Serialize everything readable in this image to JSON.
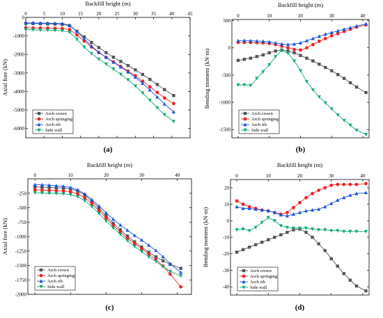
{
  "figure": {
    "panel_labels": [
      "(a)",
      "(b)",
      "(c)",
      "(d)"
    ]
  },
  "chart_data": [
    {
      "type": "line",
      "panel": "(a)",
      "xlabel": "Backfill height (m)",
      "ylabel": "Axial fore (kN)",
      "xlim": [
        0,
        45
      ],
      "ylim": [
        -6500,
        0
      ],
      "x_ticks": [
        0,
        5,
        10,
        15,
        20,
        25,
        30,
        35,
        40,
        45
      ],
      "y_ticks": [
        0,
        -1000,
        -2000,
        -3000,
        -4000,
        -5000,
        -6000
      ],
      "x_axis_position": "top",
      "legend_position": "bottom-left",
      "x": [
        0,
        2,
        4,
        6,
        8,
        10,
        12,
        14,
        16,
        18,
        20,
        22,
        24,
        26,
        28,
        30,
        32,
        34,
        36,
        38,
        40.5
      ],
      "series": [
        {
          "name": "Arch crown",
          "color": "#555555",
          "marker": "square",
          "values": [
            -320,
            -330,
            -340,
            -350,
            -360,
            -380,
            -450,
            -750,
            -1050,
            -1350,
            -1630,
            -1900,
            -2150,
            -2380,
            -2600,
            -2830,
            -3080,
            -3350,
            -3620,
            -3900,
            -4220
          ]
        },
        {
          "name": "Arch springing",
          "color": "#ee2222",
          "marker": "circle",
          "values": [
            -560,
            -570,
            -570,
            -580,
            -590,
            -600,
            -660,
            -950,
            -1280,
            -1600,
            -1900,
            -2150,
            -2400,
            -2650,
            -2900,
            -3150,
            -3450,
            -3750,
            -4050,
            -4350,
            -4650
          ]
        },
        {
          "name": "Arch rib",
          "color": "#1a55dd",
          "marker": "triangle-up",
          "values": [
            -300,
            -300,
            -310,
            -310,
            -320,
            -330,
            -420,
            -760,
            -1160,
            -1540,
            -1880,
            -2160,
            -2420,
            -2680,
            -2950,
            -3230,
            -3560,
            -3920,
            -4300,
            -4680,
            -5100
          ]
        },
        {
          "name": "Side wall",
          "color": "#11aa77",
          "marker": "triangle-down",
          "values": [
            -660,
            -670,
            -680,
            -690,
            -700,
            -720,
            -800,
            -1180,
            -1600,
            -1950,
            -2250,
            -2520,
            -2790,
            -3070,
            -3370,
            -3700,
            -4080,
            -4480,
            -4880,
            -5250,
            -5620
          ]
        }
      ]
    },
    {
      "type": "line",
      "panel": "(b)",
      "title": "Backfill height (m)",
      "ylabel": "Bending moment (kN·m)",
      "xlim": [
        -2,
        42
      ],
      "ylim": [
        -1650,
        520
      ],
      "x_ticks": [
        0,
        10,
        20,
        30,
        40
      ],
      "y_ticks": [
        500,
        0,
        -500,
        -1000,
        -1500
      ],
      "x_axis_position": "top",
      "legend_position": "bottom-left",
      "x": [
        0,
        2,
        4,
        6,
        8,
        10,
        12,
        14,
        16,
        18,
        20,
        22,
        24,
        26,
        28,
        30,
        32,
        34,
        36,
        38,
        41
      ],
      "series": [
        {
          "name": "Arch crown",
          "color": "#555555",
          "marker": "square",
          "values": [
            -230,
            -210,
            -190,
            -160,
            -130,
            -90,
            -60,
            -40,
            -60,
            -90,
            -140,
            -190,
            -240,
            -300,
            -360,
            -420,
            -490,
            -560,
            -640,
            -720,
            -820
          ]
        },
        {
          "name": "Arch springing",
          "color": "#ee2222",
          "marker": "circle",
          "values": [
            100,
            100,
            100,
            95,
            90,
            80,
            60,
            30,
            0,
            -30,
            -40,
            0,
            60,
            120,
            170,
            220,
            260,
            300,
            340,
            380,
            420
          ]
        },
        {
          "name": "Arch rib",
          "color": "#1a55dd",
          "marker": "triangle-up",
          "values": [
            130,
            135,
            130,
            125,
            120,
            110,
            90,
            70,
            60,
            70,
            90,
            130,
            170,
            210,
            250,
            280,
            310,
            340,
            370,
            400,
            440
          ]
        },
        {
          "name": "Side wall",
          "color": "#11aa77",
          "marker": "triangle-down",
          "values": [
            -680,
            -680,
            -690,
            -560,
            -440,
            -310,
            -160,
            -50,
            -100,
            -240,
            -420,
            -620,
            -770,
            -900,
            -1010,
            -1120,
            -1230,
            -1330,
            -1420,
            -1510,
            -1590
          ]
        }
      ]
    },
    {
      "type": "line",
      "panel": "(c)",
      "title": "Backfill height (m)",
      "ylabel": "Axial fore (kN)",
      "xlim": [
        -2,
        44
      ],
      "ylim": [
        -2000,
        0
      ],
      "x_ticks": [
        0,
        10,
        20,
        30,
        40
      ],
      "y_ticks": [
        -250,
        -500,
        -750,
        -1000,
        -1250,
        -1500,
        -1750,
        -2000
      ],
      "x_axis_position": "top",
      "legend_position": "bottom-left",
      "x": [
        0,
        2,
        4,
        6,
        8,
        10,
        12,
        14,
        16,
        18,
        20,
        22,
        24,
        26,
        28,
        30,
        32,
        34,
        36,
        38,
        41
      ],
      "series": [
        {
          "name": "Arch crown",
          "color": "#555555",
          "marker": "square",
          "values": [
            -140,
            -145,
            -150,
            -155,
            -160,
            -175,
            -210,
            -280,
            -390,
            -510,
            -640,
            -770,
            -880,
            -990,
            -1090,
            -1180,
            -1270,
            -1350,
            -1420,
            -1480,
            -1550
          ]
        },
        {
          "name": "Arch springing",
          "color": "#ee2222",
          "marker": "circle",
          "values": [
            -190,
            -195,
            -200,
            -205,
            -210,
            -225,
            -260,
            -330,
            -430,
            -550,
            -680,
            -810,
            -920,
            -1030,
            -1120,
            -1210,
            -1300,
            -1400,
            -1510,
            -1650,
            -1870
          ]
        },
        {
          "name": "Arch rib",
          "color": "#1a55dd",
          "marker": "triangle-up",
          "values": [
            -100,
            -105,
            -110,
            -120,
            -130,
            -150,
            -190,
            -260,
            -360,
            -470,
            -590,
            -700,
            -800,
            -890,
            -980,
            -1060,
            -1150,
            -1240,
            -1350,
            -1470,
            -1620
          ]
        },
        {
          "name": "Side wall",
          "color": "#11aa77",
          "marker": "triangle-down",
          "values": [
            -240,
            -245,
            -250,
            -255,
            -260,
            -275,
            -310,
            -380,
            -480,
            -600,
            -730,
            -850,
            -960,
            -1070,
            -1170,
            -1260,
            -1350,
            -1430,
            -1520,
            -1600,
            -1680
          ]
        }
      ]
    },
    {
      "type": "line",
      "panel": "(d)",
      "title": "Backfill height (m)",
      "ylabel": "Bending moment (kN·m)",
      "xlim": [
        -2,
        42
      ],
      "ylim": [
        -45,
        25
      ],
      "x_ticks": [
        0,
        10,
        20,
        30,
        40
      ],
      "y_ticks": [
        20,
        10,
        0,
        -10,
        -20,
        -30,
        -40
      ],
      "x_axis_position": "top",
      "legend_position": "bottom-left",
      "x": [
        0,
        2,
        4,
        6,
        8,
        10,
        12,
        14,
        16,
        18,
        20,
        22,
        24,
        26,
        28,
        30,
        32,
        34,
        36,
        38,
        41
      ],
      "series": [
        {
          "name": "Arch crown",
          "color": "#555555",
          "marker": "square",
          "values": [
            -19,
            -17.5,
            -16,
            -14.5,
            -13,
            -11.5,
            -10,
            -8.5,
            -7,
            -5.5,
            -5,
            -7,
            -10,
            -14,
            -18,
            -23,
            -27.5,
            -32,
            -36,
            -39.5,
            -42.5
          ]
        },
        {
          "name": "Arch springing",
          "color": "#ee2222",
          "marker": "circle",
          "values": [
            12,
            10,
            8.5,
            7.5,
            6.5,
            6,
            5,
            4,
            5,
            8,
            11,
            14,
            16.5,
            18.5,
            20,
            21.5,
            22,
            22,
            22,
            22,
            22.5
          ]
        },
        {
          "name": "Arch rib",
          "color": "#1a55dd",
          "marker": "triangle-up",
          "values": [
            8.5,
            7.5,
            7.5,
            7,
            6.5,
            6,
            5,
            3.5,
            3,
            4,
            5,
            6,
            6.5,
            7,
            8.5,
            10.5,
            12.5,
            14,
            15.5,
            16.5,
            17
          ]
        },
        {
          "name": "Side wall",
          "color": "#11aa77",
          "marker": "triangle-down",
          "values": [
            -5.5,
            -5,
            -6,
            -4,
            -1,
            2,
            0,
            -3,
            -4,
            -4.5,
            -4.5,
            -4.5,
            -5,
            -5.5,
            -5.5,
            -6,
            -6,
            -6.5,
            -6.5,
            -6.5,
            -6.5
          ]
        }
      ]
    }
  ]
}
